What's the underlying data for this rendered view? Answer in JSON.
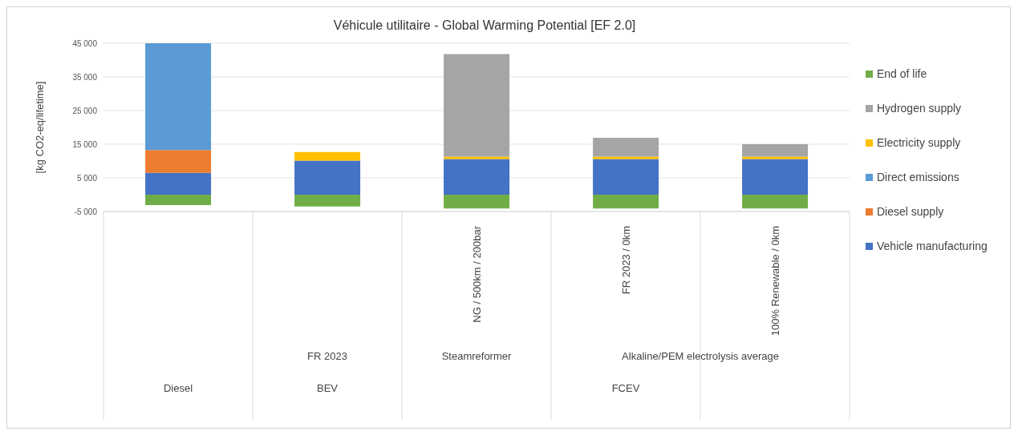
{
  "chart_data": {
    "type": "bar",
    "title": "Véhicule utilitaire - Global Warming Potential [EF 2.0]",
    "ylabel": "[kg CO2-eq/lifetime]",
    "categories": [
      null,
      null,
      "NG / 500km / 200bar",
      "FR 2023 / 0km",
      "100% Renewable / 0km"
    ],
    "annotations": [
      "FR 2023",
      "Steamreformer",
      "Alkaline/PEM electrolysis average",
      "Diesel",
      "BEV",
      "FCEV"
    ],
    "stacked": true,
    "ylim": [
      -5000,
      45000
    ],
    "yticks": [
      {
        "value": 45000,
        "label": "45 000"
      },
      {
        "value": 35000,
        "label": "35 000"
      },
      {
        "value": 25000,
        "label": "25 000"
      },
      {
        "value": 15000,
        "label": "15 000"
      },
      {
        "value": 5000,
        "label": "5 000"
      },
      {
        "value": -5000,
        "label": "-5 000"
      }
    ],
    "grid": "y",
    "legend": "right",
    "series": [
      {
        "name": "Vehicle manufacturing",
        "color": "#4472c4",
        "values": [
          6500,
          10100,
          10600,
          10600,
          10600
        ]
      },
      {
        "name": "Diesel supply",
        "color": "#ed7d31",
        "values": [
          6800,
          null,
          null,
          null,
          null
        ]
      },
      {
        "name": "Direct emissions",
        "color": "#5b9bd5",
        "values": [
          31700,
          null,
          null,
          null,
          null
        ]
      },
      {
        "name": "Electricity supply",
        "color": "#ffc000",
        "values": [
          null,
          2600,
          700,
          700,
          700
        ]
      },
      {
        "name": "Hydrogen supply",
        "color": "#a5a5a5",
        "values": [
          null,
          null,
          30500,
          5600,
          3700
        ]
      },
      {
        "name": "End of life",
        "color": "#70ad47",
        "values": [
          -3100,
          -3500,
          -4100,
          -4100,
          -4100
        ]
      }
    ]
  }
}
